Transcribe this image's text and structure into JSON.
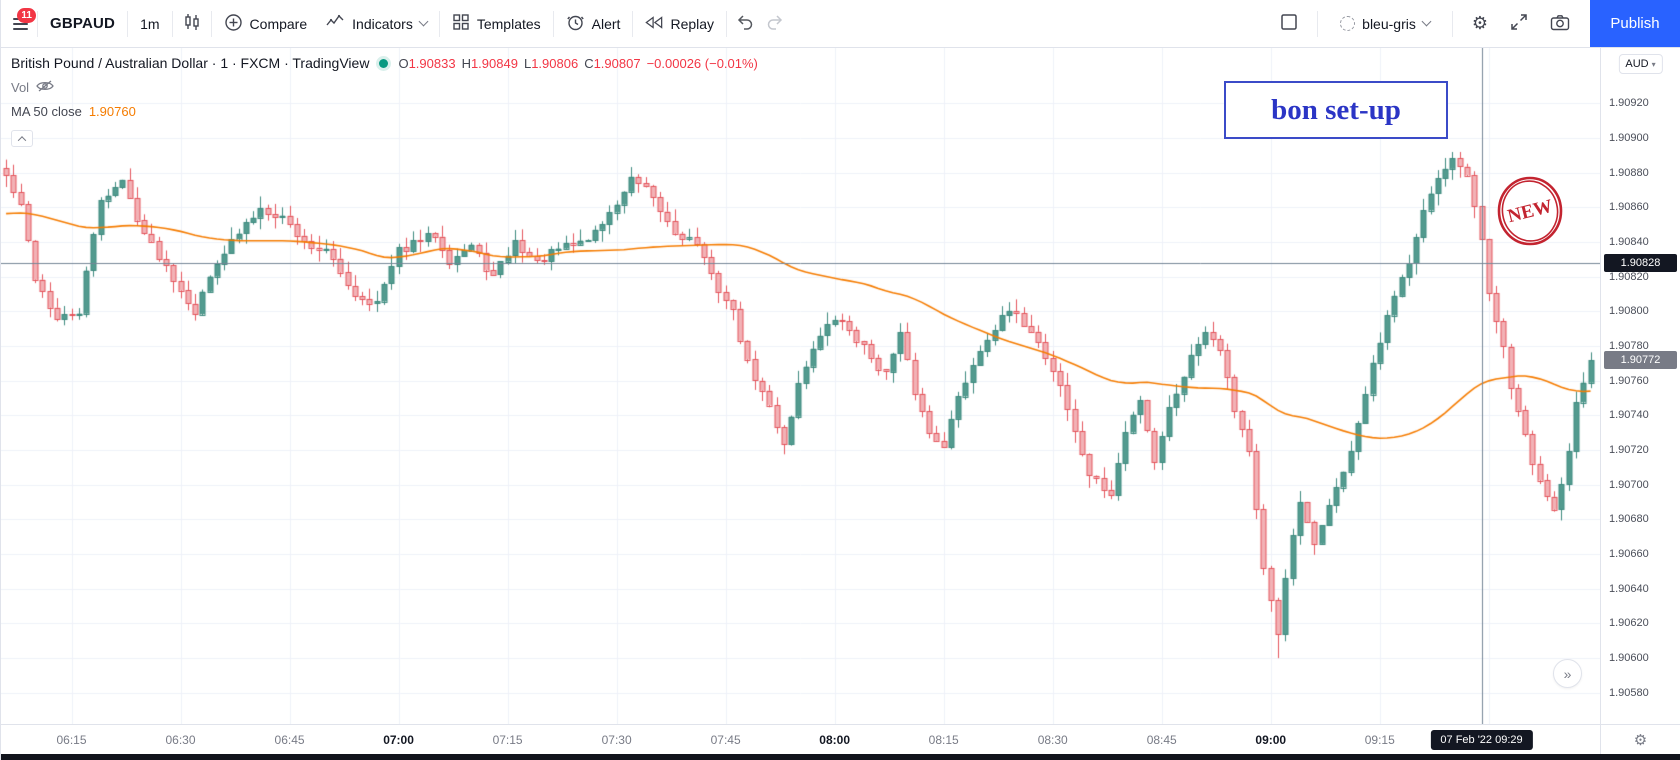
{
  "toolbar": {
    "menu_badge": "11",
    "symbol": "GBPAUD",
    "interval": "1m",
    "compare_label": "Compare",
    "indicators_label": "Indicators",
    "templates_label": "Templates",
    "alert_label": "Alert",
    "replay_label": "Replay",
    "theme_label": "bleu-gris",
    "publish_label": "Publish",
    "accent_color": "#2962ff"
  },
  "legend": {
    "title": "British Pound / Australian Dollar · 1 · FXCM · TradingView",
    "ohlc": {
      "o_label": "O",
      "o_value": "1.90833",
      "h_label": "H",
      "h_value": "1.90849",
      "l_label": "L",
      "l_value": "1.90806",
      "c_label": "C",
      "c_value": "1.90807",
      "change": "−0.00026 (−0.01%)"
    },
    "vol_label": "Vol",
    "ma_label": "MA 50 close",
    "ma_value": "1.90760"
  },
  "annotations": {
    "note_text": "bon set-up",
    "stamp_text": "NEW"
  },
  "price_axis": {
    "currency_label": "AUD",
    "chevron": "▾",
    "last_price": "1.90828",
    "secondary_price": "1.90772",
    "ticks": [
      "1.90920",
      "1.90900",
      "1.90880",
      "1.90860",
      "1.90840",
      "1.90820",
      "1.90800",
      "1.90780",
      "1.90760",
      "1.90740",
      "1.90720",
      "1.90700",
      "1.90680",
      "1.90660",
      "1.90640",
      "1.90620",
      "1.90600",
      "1.90580"
    ]
  },
  "time_axis": {
    "badge": "07 Feb '22  09:29",
    "labels": [
      {
        "text": "06:15",
        "bold": false
      },
      {
        "text": "06:30",
        "bold": false
      },
      {
        "text": "06:45",
        "bold": false
      },
      {
        "text": "07:00",
        "bold": true
      },
      {
        "text": "07:15",
        "bold": false
      },
      {
        "text": "07:30",
        "bold": false
      },
      {
        "text": "07:45",
        "bold": false
      },
      {
        "text": "08:00",
        "bold": true
      },
      {
        "text": "08:15",
        "bold": false
      },
      {
        "text": "08:30",
        "bold": false
      },
      {
        "text": "08:45",
        "bold": false
      },
      {
        "text": "09:00",
        "bold": true
      },
      {
        "text": "09:15",
        "bold": false
      }
    ]
  },
  "misc": {
    "more_glyph": "»",
    "gear_glyph": "⚙"
  },
  "chart_data": {
    "type": "candlestick",
    "symbol": "GBPAUD",
    "exchange": "FXCM",
    "description": "British Pound / Australian Dollar",
    "interval_minutes": 1,
    "visible_time_range": [
      "06:06",
      "09:44"
    ],
    "legend_ohlc": {
      "open": 1.90833,
      "high": 1.90849,
      "low": 1.90806,
      "close": 1.90807,
      "change": -0.00026,
      "change_pct": -0.01
    },
    "price_top": 1.90952,
    "price_bottom": 1.90562,
    "candle_count": 219,
    "first_label_index": 9,
    "label_step": 15,
    "grid_line_count": 14,
    "seed": 42,
    "noise": 5e-05,
    "wick": 7e-05,
    "last_close": 1.90772,
    "secondary_price": 1.90772,
    "crosshair": {
      "index": 203,
      "price": 1.90828,
      "time_label": "07 Feb '22  09:29"
    },
    "spikes": [
      {
        "index": 175,
        "low": 1.906
      },
      {
        "index": 199,
        "high": 1.90892
      }
    ],
    "anchors": [
      [
        0,
        1.90878
      ],
      [
        2,
        1.9086
      ],
      [
        4,
        1.9082
      ],
      [
        7,
        1.90795
      ],
      [
        10,
        1.908
      ],
      [
        13,
        1.90865
      ],
      [
        16,
        1.90875
      ],
      [
        19,
        1.90845
      ],
      [
        23,
        1.9082
      ],
      [
        26,
        1.908
      ],
      [
        29,
        1.9083
      ],
      [
        31,
        1.9084
      ],
      [
        35,
        1.9086
      ],
      [
        38,
        1.90855
      ],
      [
        41,
        1.9084
      ],
      [
        44,
        1.90835
      ],
      [
        48,
        1.9081
      ],
      [
        51,
        1.90805
      ],
      [
        54,
        1.90835
      ],
      [
        59,
        1.90845
      ],
      [
        61,
        1.9083
      ],
      [
        64,
        1.90838
      ],
      [
        67,
        1.9082
      ],
      [
        70,
        1.9084
      ],
      [
        73,
        1.90828
      ],
      [
        76,
        1.90836
      ],
      [
        80,
        1.90842
      ],
      [
        83,
        1.90856
      ],
      [
        86,
        1.90876
      ],
      [
        88,
        1.9087
      ],
      [
        90,
        1.90858
      ],
      [
        92,
        1.90846
      ],
      [
        95,
        1.9084
      ],
      [
        97,
        1.9082
      ],
      [
        100,
        1.908
      ],
      [
        102,
        1.9077
      ],
      [
        105,
        1.90745
      ],
      [
        107,
        1.90724
      ],
      [
        109,
        1.90758
      ],
      [
        111,
        1.9078
      ],
      [
        114,
        1.90796
      ],
      [
        116,
        1.9079
      ],
      [
        119,
        1.90774
      ],
      [
        121,
        1.90764
      ],
      [
        123,
        1.90786
      ],
      [
        125,
        1.90754
      ],
      [
        127,
        1.9073
      ],
      [
        129,
        1.90724
      ],
      [
        131,
        1.9075
      ],
      [
        133,
        1.9077
      ],
      [
        135,
        1.90786
      ],
      [
        138,
        1.908
      ],
      [
        141,
        1.9079
      ],
      [
        143,
        1.90774
      ],
      [
        145,
        1.90758
      ],
      [
        147,
        1.9073
      ],
      [
        149,
        1.90706
      ],
      [
        152,
        1.90694
      ],
      [
        154,
        1.9073
      ],
      [
        156,
        1.9075
      ],
      [
        158,
        1.90714
      ],
      [
        160,
        1.90744
      ],
      [
        163,
        1.90774
      ],
      [
        165,
        1.9079
      ],
      [
        167,
        1.9078
      ],
      [
        169,
        1.90744
      ],
      [
        171,
        1.9072
      ],
      [
        173,
        1.9065
      ],
      [
        175,
        1.90614
      ],
      [
        176,
        1.90648
      ],
      [
        178,
        1.9069
      ],
      [
        180,
        1.90664
      ],
      [
        182,
        1.9069
      ],
      [
        184,
        1.90706
      ],
      [
        186,
        1.90736
      ],
      [
        188,
        1.90768
      ],
      [
        190,
        1.90796
      ],
      [
        193,
        1.9083
      ],
      [
        195,
        1.9086
      ],
      [
        197,
        1.90876
      ],
      [
        199,
        1.90886
      ],
      [
        201,
        1.90878
      ],
      [
        203,
        1.9084
      ],
      [
        204,
        1.9081
      ],
      [
        206,
        1.9078
      ],
      [
        207,
        1.90754
      ],
      [
        209,
        1.9073
      ],
      [
        210,
        1.9071
      ],
      [
        212,
        1.90694
      ],
      [
        213,
        1.90684
      ],
      [
        215,
        1.9072
      ],
      [
        216,
        1.9075
      ],
      [
        218,
        1.90772
      ]
    ],
    "ma": {
      "period": 50,
      "warmup": 1.90856,
      "color": "#f57c00",
      "last_value": 1.9076
    },
    "colors": {
      "up_fill": "#539b8f",
      "up_border": "#3d8a7e",
      "down_fill": "#f2b2b6",
      "down_border": "#e4555c",
      "grid": "#eef2f8",
      "crosshair": "#758696",
      "last_price_badge_bg": "#131722",
      "secondary_badge_bg": "#787b86"
    }
  }
}
